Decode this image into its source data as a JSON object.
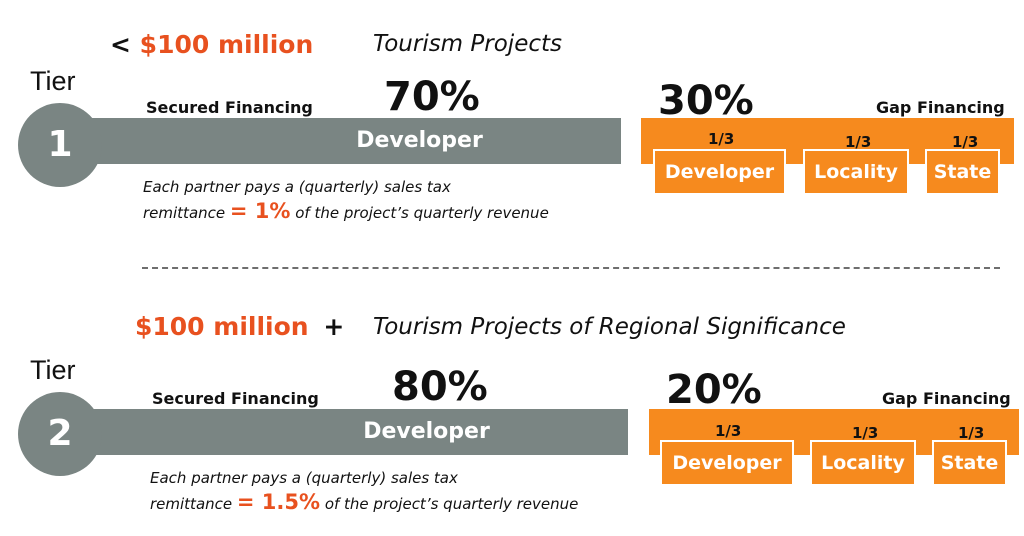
{
  "colors": {
    "accent": "#e8511f",
    "gray": "#7a8583",
    "orange": "#f68a1e"
  },
  "tiers": [
    {
      "threshold_prefix": "<",
      "threshold_amount": "$100 million",
      "threshold_suffix": "",
      "category": "Tourism Projects",
      "tier_word": "Tier",
      "tier_number": "1",
      "secured_label": "Secured Financing",
      "secured_percent": "70%",
      "secured_bar_label": "Developer",
      "gap_percent": "30%",
      "gap_label": "Gap Financing",
      "partners": [
        {
          "share": "1/3",
          "name": "Developer"
        },
        {
          "share": "1/3",
          "name": "Locality"
        },
        {
          "share": "1/3",
          "name": "State"
        }
      ],
      "note_line1": "Each partner pays a (quarterly) sales tax",
      "note_pre": "remittance ",
      "note_rate": "= 1%",
      "note_post": " of the project’s quarterly revenue"
    },
    {
      "threshold_prefix": "",
      "threshold_amount": "$100 million",
      "threshold_suffix": "+",
      "category": "Tourism Projects of Regional Significance",
      "tier_word": "Tier",
      "tier_number": "2",
      "secured_label": "Secured Financing",
      "secured_percent": "80%",
      "secured_bar_label": "Developer",
      "gap_percent": "20%",
      "gap_label": "Gap Financing",
      "partners": [
        {
          "share": "1/3",
          "name": "Developer"
        },
        {
          "share": "1/3",
          "name": "Locality"
        },
        {
          "share": "1/3",
          "name": "State"
        }
      ],
      "note_line1": "Each partner pays a (quarterly) sales tax",
      "note_pre": "remittance ",
      "note_rate": "= 1.5%",
      "note_post": " of the project’s quarterly revenue"
    }
  ]
}
